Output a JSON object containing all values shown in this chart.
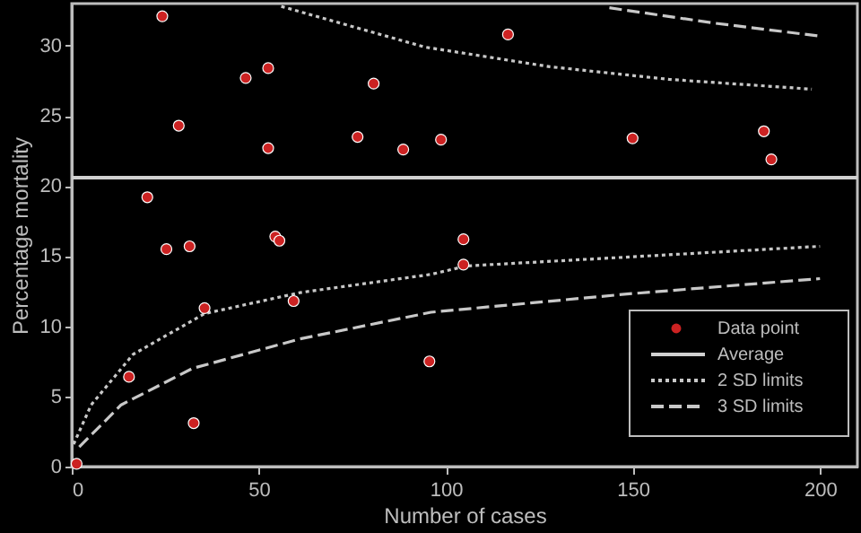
{
  "chart_data": {
    "type": "scatter",
    "xlabel": "Number of cases",
    "ylabel": "Percentage mortality",
    "xlim": [
      0,
      210
    ],
    "ylim": [
      0,
      33
    ],
    "xticks": [
      0,
      50,
      100,
      150,
      200
    ],
    "yticks": [
      0,
      5,
      10,
      15,
      20,
      25,
      30
    ],
    "grid": false,
    "legend": "bottom right",
    "marker": "circle",
    "ref_lines": [
      {
        "axis": "y",
        "value": 20.6,
        "label": "Average",
        "color": "#d0d0d0",
        "line_style": "solid"
      }
    ],
    "series": [
      {
        "name": "Data point",
        "color": "#cc2222",
        "x": [
          24.2,
          28.6,
          46.5,
          52.5,
          52.5,
          76.4,
          80.7,
          88.6,
          20.2,
          25.3,
          31.5,
          54.4,
          55.5,
          116.6,
          98.7,
          149.9,
          185,
          187,
          104.7,
          104.7,
          1.3,
          15.3,
          32.6,
          35.5,
          59.3,
          95.6
        ],
        "values": [
          32.1,
          24.3,
          27.7,
          28.4,
          22.7,
          23.5,
          27.3,
          22.6,
          19.2,
          15.5,
          15.7,
          16.4,
          16.1,
          30.8,
          23.3,
          23.4,
          23.9,
          21.9,
          16.2,
          14.4,
          0.2,
          6.4,
          3.1,
          11.3,
          11.8,
          7.5
        ]
      },
      {
        "name": "2 SD limits",
        "type": "line",
        "marker": "none",
        "line_style": "dotted",
        "color": "#c8c8c8",
        "x": [
          0.5,
          5.2,
          16.4,
          35.5,
          61,
          96,
          105.5,
          153,
          200
        ],
        "values": [
          1.6,
          4.4,
          8.0,
          10.9,
          12.4,
          13.7,
          14.3,
          15.0,
          15.7
        ]
      },
      {
        "type": "line",
        "marker": "none",
        "line_style": "dotted",
        "color": "#c8c8c8",
        "x": [
          56,
          94.4,
          127.8,
          159.6,
          197.8
        ],
        "values": [
          32.8,
          29.9,
          28.5,
          27.6,
          26.9
        ]
      },
      {
        "name": "3 SD limits",
        "type": "line",
        "marker": "none",
        "line_style": "dashed",
        "color": "#c8c8c8",
        "x": [
          2,
          13.2,
          32.3,
          61,
          96,
          148.4,
          200
        ],
        "values": [
          1.4,
          4.4,
          7.0,
          9.1,
          11.0,
          12.3,
          13.4
        ]
      },
      {
        "type": "line",
        "marker": "none",
        "line_style": "dashed",
        "color": "#c8c8c8",
        "x": [
          143.7,
          172,
          199.4
        ],
        "values": [
          32.7,
          31.6,
          30.7
        ]
      }
    ]
  }
}
